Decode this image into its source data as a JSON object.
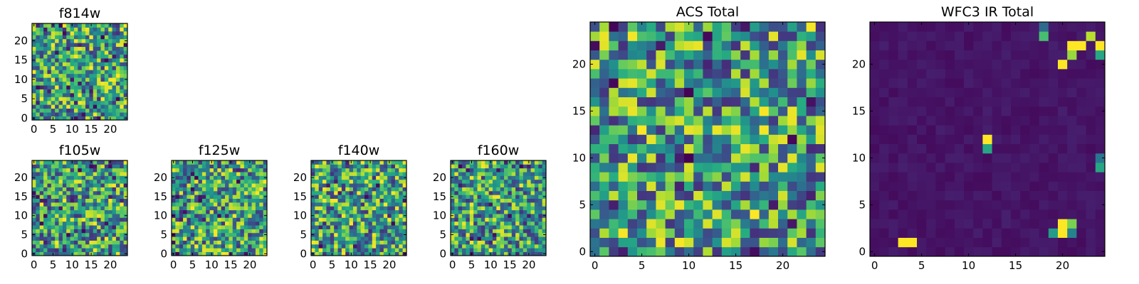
{
  "chart_data": [
    {
      "type": "heatmap",
      "title": "f814w",
      "grid": [
        25,
        25
      ],
      "xlim": [
        -0.5,
        24.5
      ],
      "ylim": [
        -0.5,
        24.5
      ],
      "xticks": [
        0,
        5,
        10,
        15,
        20
      ],
      "yticks": [
        0,
        5,
        10,
        15,
        20
      ],
      "colormap": "viridis",
      "pattern": "noise",
      "seed": 11
    },
    {
      "type": "heatmap",
      "title": "f105w",
      "grid": [
        25,
        25
      ],
      "xlim": [
        -0.5,
        24.5
      ],
      "ylim": [
        -0.5,
        24.5
      ],
      "xticks": [
        0,
        5,
        10,
        15,
        20
      ],
      "yticks": [
        0,
        5,
        10,
        15,
        20
      ],
      "colormap": "viridis",
      "pattern": "noise",
      "seed": 23
    },
    {
      "type": "heatmap",
      "title": "f125w",
      "grid": [
        25,
        25
      ],
      "xlim": [
        -0.5,
        24.5
      ],
      "ylim": [
        -0.5,
        24.5
      ],
      "xticks": [
        0,
        5,
        10,
        15,
        20
      ],
      "yticks": [
        0,
        5,
        10,
        15,
        20
      ],
      "colormap": "viridis",
      "pattern": "noise",
      "seed": 37
    },
    {
      "type": "heatmap",
      "title": "f140w",
      "grid": [
        25,
        25
      ],
      "xlim": [
        -0.5,
        24.5
      ],
      "ylim": [
        -0.5,
        24.5
      ],
      "xticks": [
        0,
        5,
        10,
        15,
        20
      ],
      "yticks": [
        0,
        5,
        10,
        15,
        20
      ],
      "colormap": "viridis",
      "pattern": "noise",
      "seed": 41
    },
    {
      "type": "heatmap",
      "title": "f160w",
      "grid": [
        25,
        25
      ],
      "xlim": [
        -0.5,
        24.5
      ],
      "ylim": [
        -0.5,
        24.5
      ],
      "xticks": [
        0,
        5,
        10,
        15,
        20
      ],
      "yticks": [
        0,
        5,
        10,
        15,
        20
      ],
      "colormap": "viridis",
      "pattern": "noise",
      "seed": 53
    },
    {
      "type": "heatmap",
      "title": "ACS Total",
      "grid": [
        25,
        25
      ],
      "xlim": [
        -0.5,
        24.5
      ],
      "ylim": [
        -0.5,
        24.5
      ],
      "xticks": [
        0,
        5,
        10,
        15,
        20
      ],
      "yticks": [
        0,
        5,
        10,
        15,
        20
      ],
      "colormap": "viridis",
      "pattern": "noise",
      "seed": 67
    },
    {
      "type": "heatmap",
      "title": "WFC3 IR Total",
      "grid": [
        25,
        25
      ],
      "xlim": [
        -0.5,
        24.5
      ],
      "ylim": [
        -0.5,
        24.5
      ],
      "xticks": [
        0,
        5,
        10,
        15,
        20
      ],
      "yticks": [
        0,
        5,
        10,
        15,
        20
      ],
      "colormap": "viridis",
      "pattern": "sources",
      "seed": 79,
      "sources": [
        {
          "x": 3,
          "y": 1,
          "value": 1.0
        },
        {
          "x": 4,
          "y": 1,
          "value": 1.0
        },
        {
          "x": 12,
          "y": 12,
          "value": 1.0
        },
        {
          "x": 12,
          "y": 11,
          "value": 0.6
        },
        {
          "x": 20,
          "y": 3,
          "value": 1.0
        },
        {
          "x": 20,
          "y": 2,
          "value": 1.0
        },
        {
          "x": 21,
          "y": 3,
          "value": 0.8
        },
        {
          "x": 19,
          "y": 2,
          "value": 0.55
        },
        {
          "x": 21,
          "y": 2,
          "value": 0.45
        },
        {
          "x": 24,
          "y": 9,
          "value": 0.6
        },
        {
          "x": 24,
          "y": 10,
          "value": 0.4
        },
        {
          "x": 21,
          "y": 22,
          "value": 1.0
        },
        {
          "x": 22,
          "y": 22,
          "value": 1.0
        },
        {
          "x": 21,
          "y": 21,
          "value": 0.85
        },
        {
          "x": 20,
          "y": 20,
          "value": 1.0
        },
        {
          "x": 23,
          "y": 23,
          "value": 0.9
        },
        {
          "x": 24,
          "y": 22,
          "value": 1.0
        },
        {
          "x": 24,
          "y": 21,
          "value": 0.6
        },
        {
          "x": 18,
          "y": 23,
          "value": 0.7
        },
        {
          "x": 18,
          "y": 24,
          "value": 0.35
        }
      ]
    }
  ]
}
